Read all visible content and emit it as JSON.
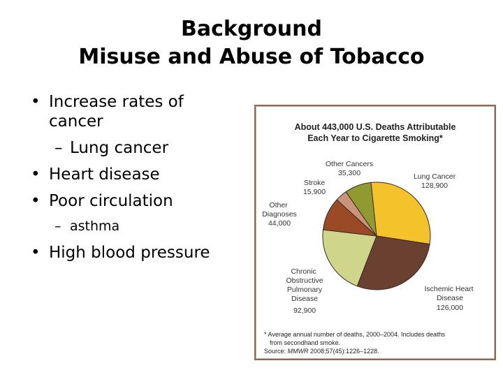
{
  "slide": {
    "title_line1": "Background",
    "title_line2": "Misuse and Abuse of Tobacco",
    "bullets": [
      {
        "level": 1,
        "text": "Increase rates of cancer"
      },
      {
        "level": 2,
        "text": "Lung cancer"
      },
      {
        "level": 1,
        "text": "Heart disease"
      },
      {
        "level": 1,
        "text": "Poor circulation"
      },
      {
        "level": 2,
        "text": "asthma"
      },
      {
        "level": 1,
        "text": "High blood pressure"
      }
    ]
  },
  "chart_data": {
    "type": "pie",
    "title_line1": "About 443,000 U.S. Deaths Attributable",
    "title_line2": "Each Year to Cigarette Smoking*",
    "slices": [
      {
        "name": "Lung Cancer",
        "value": 128900,
        "value_label": "128,900",
        "color": "#f4c22b"
      },
      {
        "name": "Ischemic Heart Disease",
        "value": 126000,
        "value_label": "126,000",
        "color": "#6a4130"
      },
      {
        "name": "Chronic Obstructive Pulmonary Disease",
        "value": 92900,
        "value_label": "92,900",
        "color": "#cfd68c"
      },
      {
        "name": "Other Diagnoses",
        "value": 44000,
        "value_label": "44,000",
        "color": "#9a4a24"
      },
      {
        "name": "Stroke",
        "value": 15900,
        "value_label": "15,900",
        "color": "#c99479"
      },
      {
        "name": "Other Cancers",
        "value": 35300,
        "value_label": "35,300",
        "color": "#8f9a30"
      }
    ],
    "footnote_line1": "* Average annual number of deaths, 2000–2004. Includes deaths",
    "footnote_line2": "from secondhand smoke.",
    "source_prefix": "Source: ",
    "source_journal": "MMWR",
    "source_rest": " 2008;57(45):1226–1228."
  }
}
